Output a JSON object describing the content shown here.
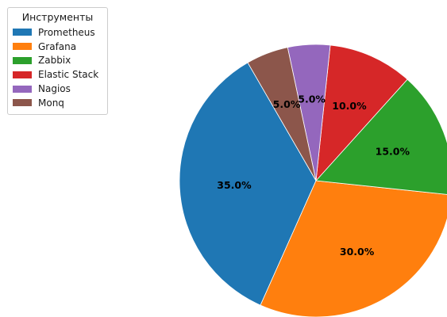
{
  "chart_data": {
    "type": "pie",
    "title": "",
    "legend_title": "Инструменты",
    "legend_position": "top-left",
    "start_angle_deg": 120,
    "direction": "counterclockwise",
    "categories": [
      "Prometheus",
      "Grafana",
      "Zabbix",
      "Elastic Stack",
      "Nagios",
      "Monq"
    ],
    "values": [
      35.0,
      30.0,
      15.0,
      10.0,
      5.0,
      5.0
    ],
    "labels": [
      "35.0%",
      "30.0%",
      "15.0%",
      "10.0%",
      "5.0%",
      "5.0%"
    ],
    "colors": [
      "#1f77b4",
      "#ff7f0e",
      "#2ca02c",
      "#d62728",
      "#9467bd",
      "#8c564b"
    ]
  }
}
